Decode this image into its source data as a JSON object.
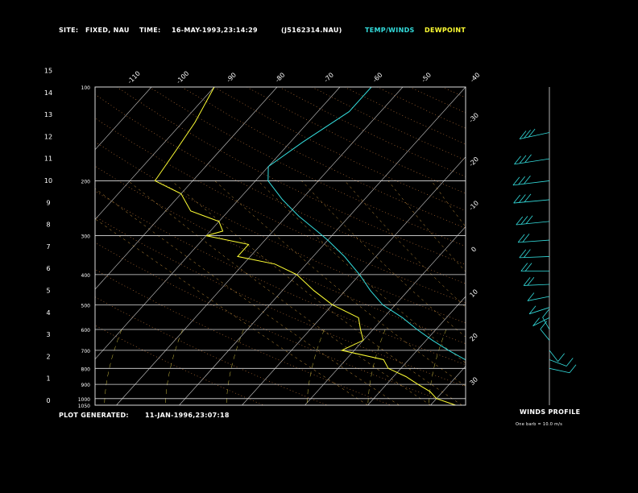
{
  "header": {
    "site_label": "SITE:",
    "site_value": "FIXED, NAU",
    "time_label": "TIME:",
    "time_value": "16-MAY-1993,23:14:29",
    "file_id": "(J5162314.NAU)",
    "legend_temp": "TEMP/WINDS",
    "legend_dew": "DEWPOINT"
  },
  "footer": {
    "generated_label": "PLOT GENERATED:",
    "generated_value": "11-JAN-1996,23:07:18",
    "winds_title": "WINDS PROFILE",
    "barb_note": "One barb = 10.0 m/s"
  },
  "colors": {
    "temp": "#33dddd",
    "dewpoint": "#ffff33",
    "isotherm": "#cccccc",
    "pressure_line": "#dddddd",
    "dry_adiabat": "#c87a3c",
    "moist_adiabat": "#d8a040",
    "mixing_ratio": "#d0c040",
    "header_label": "#ffffff",
    "temp_legend": "#33dddd",
    "dew_legend": "#ffff33"
  },
  "chart_data": {
    "type": "line",
    "pressure_levels": [
      {
        "p": 100,
        "label": "100"
      },
      {
        "p": 200,
        "label": "200"
      },
      {
        "p": 300,
        "label": "300"
      },
      {
        "p": 400,
        "label": "400"
      },
      {
        "p": 500,
        "label": "500"
      },
      {
        "p": 600,
        "label": "600"
      },
      {
        "p": 700,
        "label": "700"
      },
      {
        "p": 800,
        "label": "800"
      },
      {
        "p": 900,
        "label": "900"
      },
      {
        "p": 1000,
        "label": "1000"
      },
      {
        "p": 1050,
        "label": "1050"
      }
    ],
    "height_ticks_km": [
      "0",
      "1",
      "2",
      "3",
      "4",
      "5",
      "6",
      "7",
      "8",
      "9",
      "10",
      "11",
      "12",
      "13",
      "14",
      "15"
    ],
    "isotherm_top_labels": [
      "-110",
      "-100",
      "-90",
      "-80",
      "-70",
      "-60",
      "-50",
      "-40"
    ],
    "isotherm_right_labels": [
      "-30",
      "-20",
      "-10",
      "0",
      "10",
      "20",
      "30"
    ],
    "series": [
      {
        "name": "TEMP/WINDS",
        "points": [
          [
            100,
            -55
          ],
          [
            120,
            -55
          ],
          [
            150,
            -58
          ],
          [
            180,
            -60
          ],
          [
            200,
            -58
          ],
          [
            230,
            -53
          ],
          [
            260,
            -48
          ],
          [
            290,
            -43
          ],
          [
            310,
            -40
          ],
          [
            350,
            -35
          ],
          [
            400,
            -30
          ],
          [
            450,
            -26
          ],
          [
            500,
            -22
          ],
          [
            550,
            -17
          ],
          [
            600,
            -13
          ],
          [
            650,
            -9
          ],
          [
            700,
            -5
          ],
          [
            750,
            -1
          ],
          [
            800,
            2
          ],
          [
            850,
            5
          ],
          [
            900,
            8
          ],
          [
            950,
            11
          ],
          [
            1000,
            13
          ],
          [
            1050,
            16
          ]
        ]
      },
      {
        "name": "DEWPOINT",
        "points": [
          [
            100,
            -80
          ],
          [
            130,
            -78
          ],
          [
            160,
            -77
          ],
          [
            200,
            -76
          ],
          [
            220,
            -70
          ],
          [
            250,
            -66
          ],
          [
            270,
            -60
          ],
          [
            290,
            -58
          ],
          [
            300,
            -60
          ],
          [
            320,
            -52
          ],
          [
            350,
            -52
          ],
          [
            370,
            -45
          ],
          [
            400,
            -40
          ],
          [
            450,
            -35
          ],
          [
            500,
            -30
          ],
          [
            550,
            -24
          ],
          [
            600,
            -22
          ],
          [
            650,
            -20
          ],
          [
            700,
            -22
          ],
          [
            750,
            -14
          ],
          [
            800,
            -12
          ],
          [
            850,
            -8
          ],
          [
            900,
            -5
          ],
          [
            950,
            -2
          ],
          [
            1000,
            0
          ],
          [
            1050,
            4
          ]
        ]
      }
    ],
    "winds": [
      {
        "p": 140,
        "dir": 300,
        "spd": 25
      },
      {
        "p": 170,
        "dir": 295,
        "spd": 30
      },
      {
        "p": 200,
        "dir": 290,
        "spd": 30
      },
      {
        "p": 230,
        "dir": 285,
        "spd": 28
      },
      {
        "p": 270,
        "dir": 285,
        "spd": 25
      },
      {
        "p": 310,
        "dir": 280,
        "spd": 22
      },
      {
        "p": 350,
        "dir": 275,
        "spd": 20
      },
      {
        "p": 390,
        "dir": 270,
        "spd": 18
      },
      {
        "p": 430,
        "dir": 275,
        "spd": 15
      },
      {
        "p": 470,
        "dir": 290,
        "spd": 12
      },
      {
        "p": 510,
        "dir": 300,
        "spd": 12
      },
      {
        "p": 550,
        "dir": 310,
        "spd": 10
      },
      {
        "p": 600,
        "dir": 200,
        "spd": 8
      },
      {
        "p": 650,
        "dir": 210,
        "spd": 6
      },
      {
        "p": 700,
        "dir": 30,
        "spd": 5
      },
      {
        "p": 750,
        "dir": 60,
        "spd": 8
      },
      {
        "p": 800,
        "dir": 70,
        "spd": 10
      }
    ]
  }
}
